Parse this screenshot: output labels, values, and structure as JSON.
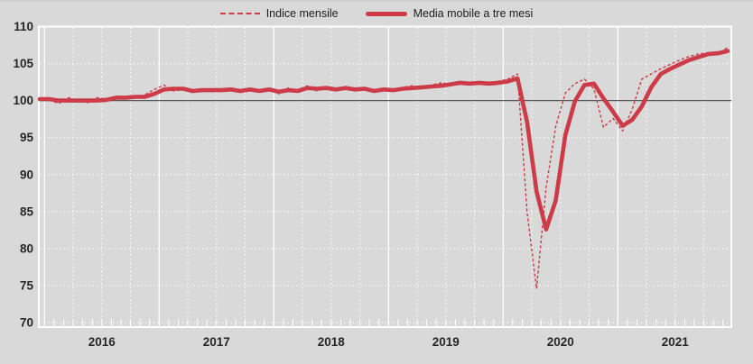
{
  "legend": {
    "items": [
      {
        "label": "Indice mensile",
        "style": "dashed"
      },
      {
        "label": "Media mobile a tre mesi",
        "style": "solid"
      }
    ]
  },
  "colors": {
    "series_red": "#cc3b47",
    "background": "#d9d9d9",
    "grid": "#ffffff",
    "reference_line": "#595959",
    "axis_text": "#262626"
  },
  "chart_data": {
    "type": "line",
    "title": "",
    "xlabel": "",
    "ylabel": "",
    "legend_position": "top-center",
    "grid": true,
    "ylim": [
      69.4,
      110
    ],
    "y_ticks": [
      70,
      75,
      80,
      85,
      90,
      95,
      100,
      105,
      110
    ],
    "x_tick_labels": [
      "2016",
      "2017",
      "2018",
      "2019",
      "2020",
      "2021"
    ],
    "reference_value": 100,
    "months": [
      "2015-12",
      "2016-01",
      "2016-02",
      "2016-03",
      "2016-04",
      "2016-05",
      "2016-06",
      "2016-07",
      "2016-08",
      "2016-09",
      "2016-10",
      "2016-11",
      "2016-12",
      "2017-01",
      "2017-02",
      "2017-03",
      "2017-04",
      "2017-05",
      "2017-06",
      "2017-07",
      "2017-08",
      "2017-09",
      "2017-10",
      "2017-11",
      "2017-12",
      "2018-01",
      "2018-02",
      "2018-03",
      "2018-04",
      "2018-05",
      "2018-06",
      "2018-07",
      "2018-08",
      "2018-09",
      "2018-10",
      "2018-11",
      "2018-12",
      "2019-01",
      "2019-02",
      "2019-03",
      "2019-04",
      "2019-05",
      "2019-06",
      "2019-07",
      "2019-08",
      "2019-09",
      "2019-10",
      "2019-11",
      "2019-12",
      "2020-01",
      "2020-02",
      "2020-03",
      "2020-04",
      "2020-05",
      "2020-06",
      "2020-07",
      "2020-08",
      "2020-09",
      "2020-10",
      "2020-11",
      "2020-12",
      "2021-01",
      "2021-02",
      "2021-03",
      "2021-04",
      "2021-05",
      "2021-06",
      "2021-07",
      "2021-08",
      "2021-09",
      "2021-10",
      "2021-11",
      "2021-12"
    ],
    "series": [
      {
        "name": "Indice mensile",
        "style": "dashed",
        "values": [
          100.3,
          100.1,
          99.6,
          100.4,
          100.0,
          99.7,
          100.4,
          100.2,
          100.6,
          100.3,
          100.5,
          100.8,
          101.5,
          102.1,
          101.3,
          101.5,
          101.1,
          101.5,
          101.5,
          101.2,
          101.7,
          101.1,
          101.6,
          101.3,
          101.5,
          100.9,
          101.7,
          101.4,
          102.0,
          101.3,
          101.8,
          101.4,
          101.9,
          101.3,
          101.6,
          101.1,
          101.7,
          101.4,
          101.8,
          102.0,
          101.6,
          102.1,
          102.4,
          102.2,
          102.6,
          102.1,
          102.4,
          102.3,
          102.6,
          102.9,
          103.6,
          84.9,
          74.6,
          88.3,
          96.5,
          101.0,
          102.3,
          102.9,
          101.6,
          96.4,
          97.6,
          95.9,
          98.8,
          102.9,
          103.6,
          104.3,
          104.9,
          105.5,
          106.0,
          106.3,
          106.5,
          106.3,
          107.2
        ]
      },
      {
        "name": "Media mobile a tre mesi",
        "style": "solid",
        "values": [
          100.2,
          100.2,
          100.0,
          100.0,
          100.0,
          100.0,
          100.0,
          100.1,
          100.4,
          100.4,
          100.5,
          100.5,
          100.9,
          101.5,
          101.6,
          101.6,
          101.3,
          101.4,
          101.4,
          101.4,
          101.5,
          101.3,
          101.5,
          101.3,
          101.5,
          101.2,
          101.4,
          101.3,
          101.7,
          101.6,
          101.7,
          101.5,
          101.7,
          101.5,
          101.6,
          101.3,
          101.5,
          101.4,
          101.6,
          101.7,
          101.8,
          101.9,
          102.0,
          102.2,
          102.4,
          102.3,
          102.4,
          102.3,
          102.4,
          102.6,
          103.0,
          97.1,
          87.7,
          82.6,
          86.5,
          95.3,
          99.9,
          102.1,
          102.3,
          100.3,
          98.5,
          96.6,
          97.4,
          99.2,
          101.8,
          103.6,
          104.3,
          104.9,
          105.5,
          105.9,
          106.3,
          106.4,
          106.7
        ]
      }
    ]
  }
}
